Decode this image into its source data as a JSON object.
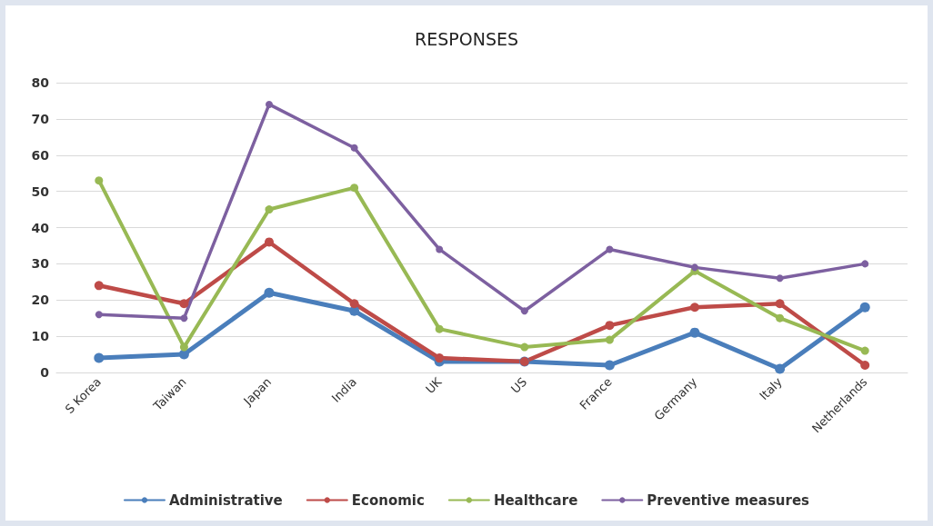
{
  "chart_data": {
    "type": "line",
    "title": "RESPONSES",
    "categories": [
      "S Korea",
      "Taiwan",
      "Japan",
      "India",
      "UK",
      "US",
      "France",
      "Germany",
      "Italy",
      "Netherlands"
    ],
    "series": [
      {
        "name": "Administrative",
        "color": "#4a7ebb",
        "values": [
          4,
          5,
          22,
          17,
          3,
          3,
          2,
          11,
          1,
          18
        ]
      },
      {
        "name": "Economic",
        "color": "#be4b48",
        "values": [
          24,
          19,
          36,
          19,
          4,
          3,
          13,
          18,
          19,
          2
        ]
      },
      {
        "name": "Healthcare",
        "color": "#98b954",
        "values": [
          53,
          7,
          45,
          51,
          12,
          7,
          9,
          28,
          15,
          6
        ]
      },
      {
        "name": "Preventive measures",
        "color": "#7d60a0",
        "values": [
          16,
          15,
          74,
          62,
          34,
          17,
          34,
          29,
          26,
          30
        ]
      }
    ],
    "ylim": [
      0,
      80
    ],
    "yticks": [
      0,
      10,
      20,
      30,
      40,
      50,
      60,
      70,
      80
    ],
    "grid": "y",
    "legend": "bottom",
    "marker": "circle",
    "line_style": "solid"
  }
}
